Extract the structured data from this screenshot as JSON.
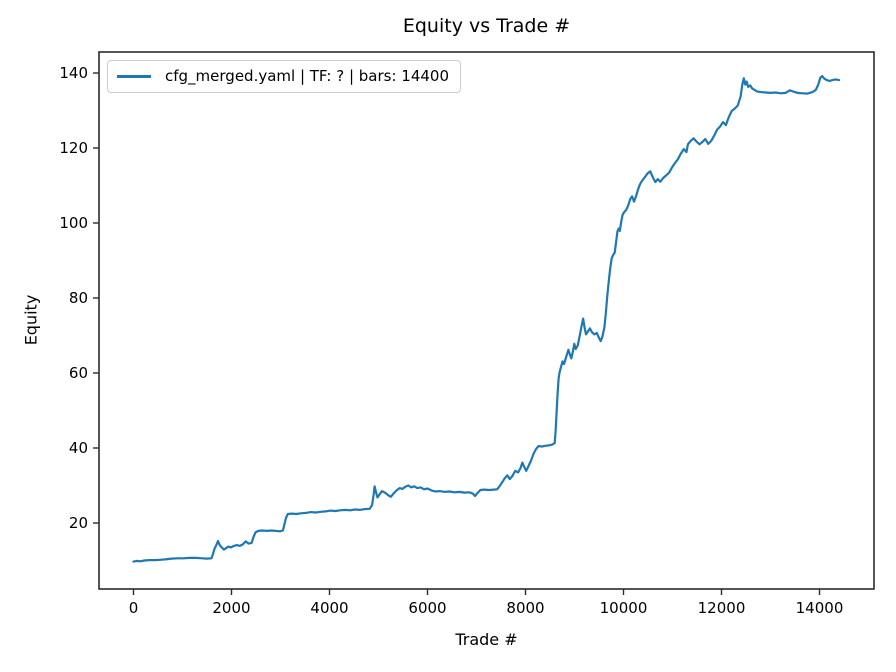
{
  "chart_data": {
    "type": "line",
    "title": "Equity vs Trade #",
    "xlabel": "Trade #",
    "ylabel": "Equity",
    "grid": false,
    "legend_position": "upper left",
    "xlim": [
      -704,
      15112
    ],
    "ylim": [
      2.4,
      145.6
    ],
    "x_ticks": [
      0,
      2000,
      4000,
      6000,
      8000,
      10000,
      12000,
      14000
    ],
    "y_ticks": [
      20,
      40,
      60,
      80,
      100,
      120,
      140
    ],
    "colors": {
      "line": "#1f77b4",
      "spine": "#2b2b2b",
      "background": "#ffffff",
      "legend_border": "#cccccc"
    },
    "series": [
      {
        "name": "cfg_merged.yaml | TF: ? | bars: 14400",
        "color": "#1f77b4",
        "points": [
          [
            0,
            9.7
          ],
          [
            70,
            9.9
          ],
          [
            140,
            9.8
          ],
          [
            220,
            10.0
          ],
          [
            320,
            10.1
          ],
          [
            430,
            10.1
          ],
          [
            540,
            10.2
          ],
          [
            650,
            10.3
          ],
          [
            780,
            10.5
          ],
          [
            900,
            10.6
          ],
          [
            1020,
            10.6
          ],
          [
            1150,
            10.7
          ],
          [
            1280,
            10.7
          ],
          [
            1400,
            10.6
          ],
          [
            1500,
            10.5
          ],
          [
            1590,
            10.6
          ],
          [
            1620,
            11.6
          ],
          [
            1650,
            13.0
          ],
          [
            1690,
            14.1
          ],
          [
            1725,
            15.2
          ],
          [
            1760,
            14.1
          ],
          [
            1800,
            13.5
          ],
          [
            1845,
            12.9
          ],
          [
            1890,
            13.3
          ],
          [
            1940,
            13.7
          ],
          [
            1990,
            13.5
          ],
          [
            2050,
            13.9
          ],
          [
            2110,
            14.1
          ],
          [
            2170,
            13.9
          ],
          [
            2230,
            14.3
          ],
          [
            2290,
            15.1
          ],
          [
            2350,
            14.5
          ],
          [
            2410,
            14.7
          ],
          [
            2450,
            16.3
          ],
          [
            2490,
            17.5
          ],
          [
            2550,
            17.9
          ],
          [
            2630,
            18.0
          ],
          [
            2720,
            17.9
          ],
          [
            2810,
            18.0
          ],
          [
            2900,
            17.9
          ],
          [
            2990,
            17.8
          ],
          [
            3050,
            18.0
          ],
          [
            3080,
            19.6
          ],
          [
            3110,
            21.3
          ],
          [
            3150,
            22.4
          ],
          [
            3230,
            22.5
          ],
          [
            3320,
            22.4
          ],
          [
            3420,
            22.6
          ],
          [
            3520,
            22.7
          ],
          [
            3620,
            22.9
          ],
          [
            3720,
            22.8
          ],
          [
            3820,
            23.0
          ],
          [
            3920,
            23.1
          ],
          [
            4020,
            23.3
          ],
          [
            4120,
            23.2
          ],
          [
            4220,
            23.4
          ],
          [
            4320,
            23.5
          ],
          [
            4420,
            23.4
          ],
          [
            4520,
            23.6
          ],
          [
            4620,
            23.5
          ],
          [
            4720,
            23.7
          ],
          [
            4820,
            23.8
          ],
          [
            4870,
            24.8
          ],
          [
            4900,
            27.5
          ],
          [
            4920,
            29.8
          ],
          [
            4950,
            28.1
          ],
          [
            4980,
            26.8
          ],
          [
            5020,
            27.6
          ],
          [
            5070,
            28.5
          ],
          [
            5130,
            28.1
          ],
          [
            5190,
            27.5
          ],
          [
            5250,
            27.0
          ],
          [
            5310,
            27.9
          ],
          [
            5370,
            28.7
          ],
          [
            5430,
            29.3
          ],
          [
            5490,
            29.1
          ],
          [
            5550,
            29.7
          ],
          [
            5610,
            30.0
          ],
          [
            5670,
            29.5
          ],
          [
            5730,
            29.8
          ],
          [
            5790,
            29.3
          ],
          [
            5860,
            29.5
          ],
          [
            5930,
            29.0
          ],
          [
            6000,
            29.2
          ],
          [
            6080,
            28.7
          ],
          [
            6160,
            28.4
          ],
          [
            6250,
            28.5
          ],
          [
            6350,
            28.3
          ],
          [
            6450,
            28.4
          ],
          [
            6550,
            28.2
          ],
          [
            6650,
            28.3
          ],
          [
            6750,
            28.1
          ],
          [
            6850,
            28.2
          ],
          [
            6920,
            27.9
          ],
          [
            6970,
            27.2
          ],
          [
            7020,
            28.0
          ],
          [
            7080,
            28.8
          ],
          [
            7160,
            28.9
          ],
          [
            7260,
            28.8
          ],
          [
            7350,
            28.9
          ],
          [
            7420,
            29.0
          ],
          [
            7470,
            29.8
          ],
          [
            7530,
            31.0
          ],
          [
            7580,
            32.0
          ],
          [
            7630,
            32.7
          ],
          [
            7680,
            31.7
          ],
          [
            7730,
            32.5
          ],
          [
            7790,
            33.9
          ],
          [
            7850,
            33.5
          ],
          [
            7900,
            34.7
          ],
          [
            7935,
            36.1
          ],
          [
            7975,
            34.9
          ],
          [
            8015,
            33.9
          ],
          [
            8065,
            35.3
          ],
          [
            8115,
            36.7
          ],
          [
            8165,
            38.5
          ],
          [
            8215,
            39.7
          ],
          [
            8265,
            40.5
          ],
          [
            8335,
            40.4
          ],
          [
            8405,
            40.6
          ],
          [
            8475,
            40.7
          ],
          [
            8545,
            40.9
          ],
          [
            8595,
            41.3
          ],
          [
            8615,
            44.5
          ],
          [
            8635,
            49.5
          ],
          [
            8655,
            54.5
          ],
          [
            8675,
            58.5
          ],
          [
            8695,
            60.2
          ],
          [
            8725,
            61.6
          ],
          [
            8755,
            63.1
          ],
          [
            8785,
            62.4
          ],
          [
            8815,
            63.6
          ],
          [
            8845,
            64.9
          ],
          [
            8875,
            66.2
          ],
          [
            8905,
            64.9
          ],
          [
            8935,
            63.9
          ],
          [
            8965,
            65.6
          ],
          [
            8995,
            67.8
          ],
          [
            9025,
            66.4
          ],
          [
            9065,
            67.3
          ],
          [
            9105,
            69.9
          ],
          [
            9145,
            72.6
          ],
          [
            9175,
            74.5
          ],
          [
            9205,
            72.1
          ],
          [
            9235,
            70.3
          ],
          [
            9275,
            71.1
          ],
          [
            9315,
            71.9
          ],
          [
            9355,
            70.9
          ],
          [
            9405,
            70.3
          ],
          [
            9455,
            70.7
          ],
          [
            9495,
            69.5
          ],
          [
            9535,
            68.5
          ],
          [
            9570,
            69.7
          ],
          [
            9610,
            72.2
          ],
          [
            9640,
            76.2
          ],
          [
            9670,
            80.6
          ],
          [
            9700,
            84.6
          ],
          [
            9730,
            88.1
          ],
          [
            9760,
            90.6
          ],
          [
            9790,
            91.5
          ],
          [
            9820,
            92.1
          ],
          [
            9850,
            95.1
          ],
          [
            9875,
            97.7
          ],
          [
            9900,
            98.5
          ],
          [
            9925,
            97.9
          ],
          [
            9950,
            100.1
          ],
          [
            9980,
            102.1
          ],
          [
            10015,
            102.9
          ],
          [
            10055,
            103.5
          ],
          [
            10095,
            104.7
          ],
          [
            10135,
            106.3
          ],
          [
            10175,
            107.1
          ],
          [
            10215,
            105.7
          ],
          [
            10255,
            107.1
          ],
          [
            10295,
            108.9
          ],
          [
            10335,
            110.3
          ],
          [
            10375,
            111.2
          ],
          [
            10430,
            112.1
          ],
          [
            10490,
            113.2
          ],
          [
            10545,
            113.8
          ],
          [
            10600,
            112.1
          ],
          [
            10650,
            110.9
          ],
          [
            10700,
            111.7
          ],
          [
            10750,
            111.0
          ],
          [
            10810,
            112.0
          ],
          [
            10870,
            112.7
          ],
          [
            10930,
            113.4
          ],
          [
            10990,
            114.8
          ],
          [
            11050,
            116.0
          ],
          [
            11110,
            117.0
          ],
          [
            11170,
            118.5
          ],
          [
            11230,
            119.7
          ],
          [
            11285,
            118.9
          ],
          [
            11315,
            121.0
          ],
          [
            11370,
            121.9
          ],
          [
            11430,
            122.6
          ],
          [
            11490,
            121.7
          ],
          [
            11550,
            121.0
          ],
          [
            11610,
            121.6
          ],
          [
            11670,
            122.4
          ],
          [
            11730,
            121.1
          ],
          [
            11790,
            121.9
          ],
          [
            11850,
            123.3
          ],
          [
            11910,
            124.9
          ],
          [
            11970,
            125.7
          ],
          [
            12030,
            126.9
          ],
          [
            12090,
            126.1
          ],
          [
            12150,
            128.3
          ],
          [
            12210,
            129.9
          ],
          [
            12270,
            130.5
          ],
          [
            12330,
            131.3
          ],
          [
            12390,
            133.7
          ],
          [
            12425,
            136.9
          ],
          [
            12455,
            138.6
          ],
          [
            12485,
            136.9
          ],
          [
            12515,
            137.7
          ],
          [
            12545,
            136.3
          ],
          [
            12585,
            136.7
          ],
          [
            12625,
            135.9
          ],
          [
            12675,
            135.5
          ],
          [
            12725,
            135.1
          ],
          [
            12805,
            134.9
          ],
          [
            12905,
            134.8
          ],
          [
            13005,
            134.7
          ],
          [
            13105,
            134.8
          ],
          [
            13205,
            134.6
          ],
          [
            13305,
            134.7
          ],
          [
            13395,
            135.4
          ],
          [
            13455,
            135.1
          ],
          [
            13555,
            134.7
          ],
          [
            13655,
            134.6
          ],
          [
            13755,
            134.5
          ],
          [
            13855,
            134.9
          ],
          [
            13925,
            135.5
          ],
          [
            13975,
            136.9
          ],
          [
            14015,
            138.7
          ],
          [
            14055,
            139.2
          ],
          [
            14095,
            138.5
          ],
          [
            14145,
            138.1
          ],
          [
            14205,
            137.9
          ],
          [
            14265,
            138.1
          ],
          [
            14325,
            138.3
          ],
          [
            14400,
            138.1
          ]
        ]
      }
    ]
  }
}
